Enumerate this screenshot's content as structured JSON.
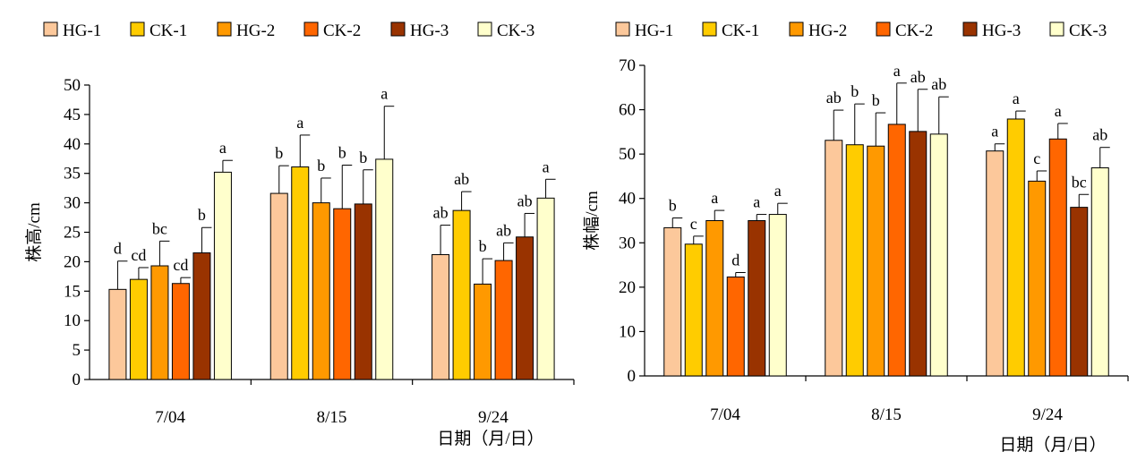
{
  "legend_colors": {
    "HG-1": "#FCC89B",
    "CK-1": "#FFCC00",
    "HG-2": "#FF9900",
    "CK-2": "#FF6600",
    "HG-3": "#993300",
    "CK-3": "#FFFFCC"
  },
  "chart_data": [
    {
      "type": "bar",
      "title": "",
      "xlabel": "日期（月/日）",
      "ylabel": "株高/cm",
      "ylim": [
        0,
        50
      ],
      "yticks": [
        0,
        5,
        10,
        15,
        20,
        25,
        30,
        35,
        40,
        45,
        50
      ],
      "categories": [
        "7/04",
        "8/15",
        "9/24"
      ],
      "legend_position": "top",
      "series": [
        {
          "name": "HG-1",
          "values": [
            15.3,
            31.6,
            21.2
          ],
          "errors": [
            4.8,
            4.7,
            5.0
          ],
          "labels": [
            "d",
            "b",
            "ab"
          ]
        },
        {
          "name": "CK-1",
          "values": [
            17.0,
            36.1,
            28.7
          ],
          "errors": [
            2.0,
            5.4,
            3.2
          ],
          "labels": [
            "cd",
            "a",
            "ab"
          ]
        },
        {
          "name": "HG-2",
          "values": [
            19.3,
            30.0,
            16.2
          ],
          "errors": [
            4.2,
            4.2,
            4.3
          ],
          "labels": [
            "bc",
            "b",
            "b"
          ]
        },
        {
          "name": "CK-2",
          "values": [
            16.3,
            29.0,
            20.2
          ],
          "errors": [
            1.0,
            7.4,
            3.0
          ],
          "labels": [
            "cd",
            "b",
            "ab"
          ]
        },
        {
          "name": "HG-3",
          "values": [
            21.5,
            29.8,
            24.2
          ],
          "errors": [
            4.3,
            5.8,
            4.0
          ],
          "labels": [
            "b",
            "b",
            "ab"
          ]
        },
        {
          "name": "CK-3",
          "values": [
            35.2,
            37.4,
            30.8
          ],
          "errors": [
            2.0,
            9.0,
            3.2
          ],
          "labels": [
            "a",
            "a",
            "a"
          ]
        }
      ]
    },
    {
      "type": "bar",
      "title": "",
      "xlabel": "日期（月/日）",
      "ylabel": "株幅/cm",
      "ylim": [
        0,
        70
      ],
      "yticks": [
        0,
        10,
        20,
        30,
        40,
        50,
        60,
        70
      ],
      "categories": [
        "7/04",
        "8/15",
        "9/24"
      ],
      "legend_position": "top",
      "series": [
        {
          "name": "HG-1",
          "values": [
            33.4,
            53.1,
            50.7
          ],
          "errors": [
            2.2,
            6.8,
            1.6
          ],
          "labels": [
            "b",
            "ab",
            "a"
          ]
        },
        {
          "name": "CK-1",
          "values": [
            29.7,
            52.1,
            57.9
          ],
          "errors": [
            1.8,
            9.2,
            1.8
          ],
          "labels": [
            "c",
            "b",
            "a"
          ]
        },
        {
          "name": "HG-2",
          "values": [
            35.0,
            51.8,
            43.9
          ],
          "errors": [
            2.3,
            7.5,
            2.3
          ],
          "labels": [
            "a",
            "b",
            "c"
          ]
        },
        {
          "name": "CK-2",
          "values": [
            22.3,
            56.7,
            53.4
          ],
          "errors": [
            1.0,
            9.3,
            3.5
          ],
          "labels": [
            "d",
            "a",
            "a"
          ]
        },
        {
          "name": "HG-3",
          "values": [
            35.0,
            55.1,
            38.0
          ],
          "errors": [
            1.4,
            9.5,
            2.9
          ],
          "labels": [
            "a",
            "ab",
            "bc"
          ]
        },
        {
          "name": "CK-3",
          "values": [
            36.4,
            54.5,
            46.9
          ],
          "errors": [
            2.5,
            8.4,
            4.6
          ],
          "labels": [
            "a",
            "ab",
            "ab"
          ]
        }
      ]
    }
  ]
}
